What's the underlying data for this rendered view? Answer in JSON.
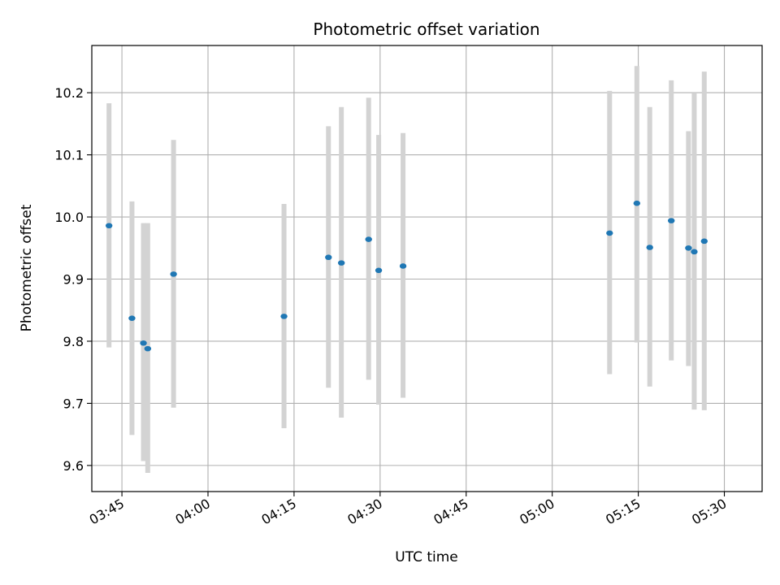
{
  "chart_data": {
    "type": "scatter",
    "title": "Photometric offset variation",
    "xlabel": "UTC time",
    "ylabel": "Photometric offset",
    "grid": true,
    "x_ticks": [
      {
        "t": "03:45",
        "label": "03:45"
      },
      {
        "t": "04:00",
        "label": "04:00"
      },
      {
        "t": "04:15",
        "label": "04:15"
      },
      {
        "t": "04:30",
        "label": "04:30"
      },
      {
        "t": "04:45",
        "label": "04:45"
      },
      {
        "t": "05:00",
        "label": "05:00"
      },
      {
        "t": "05:15",
        "label": "05:15"
      },
      {
        "t": "05:30",
        "label": "05:30"
      }
    ],
    "xlim": [
      "03:39:45",
      "05:36:35"
    ],
    "y_ticks": [
      9.6,
      9.7,
      9.8,
      9.9,
      10.0,
      10.1,
      10.2
    ],
    "ylim": [
      9.558,
      10.276
    ],
    "colors": {
      "point": "#1f77b4",
      "errorbar": "#d3d3d3",
      "grid": "#b0b0b0"
    },
    "points": [
      {
        "x": "03:42:45",
        "y": 9.986,
        "lo": 9.79,
        "hi": 10.183
      },
      {
        "x": "03:46:45",
        "y": 9.837,
        "lo": 9.649,
        "hi": 10.025
      },
      {
        "x": "03:48:45",
        "y": 9.797,
        "lo": 9.607,
        "hi": 9.99
      },
      {
        "x": "03:49:30",
        "y": 9.788,
        "lo": 9.588,
        "hi": 9.99
      },
      {
        "x": "03:54:00",
        "y": 9.908,
        "lo": 9.693,
        "hi": 10.124
      },
      {
        "x": "04:13:15",
        "y": 9.84,
        "lo": 9.66,
        "hi": 10.021
      },
      {
        "x": "04:21:00",
        "y": 9.935,
        "lo": 9.725,
        "hi": 10.146
      },
      {
        "x": "04:23:15",
        "y": 9.926,
        "lo": 9.677,
        "hi": 10.177
      },
      {
        "x": "04:28:00",
        "y": 9.964,
        "lo": 9.738,
        "hi": 10.192
      },
      {
        "x": "04:29:45",
        "y": 9.914,
        "lo": 9.698,
        "hi": 10.132
      },
      {
        "x": "04:34:00",
        "y": 9.921,
        "lo": 9.709,
        "hi": 10.135
      },
      {
        "x": "05:10:00",
        "y": 9.974,
        "lo": 9.747,
        "hi": 10.203
      },
      {
        "x": "05:14:45",
        "y": 10.022,
        "lo": 9.798,
        "hi": 10.243
      },
      {
        "x": "05:17:00",
        "y": 9.951,
        "lo": 9.727,
        "hi": 10.177
      },
      {
        "x": "05:20:45",
        "y": 9.994,
        "lo": 9.769,
        "hi": 10.22
      },
      {
        "x": "05:23:45",
        "y": 9.95,
        "lo": 9.76,
        "hi": 10.138
      },
      {
        "x": "05:24:45",
        "y": 9.944,
        "lo": 9.69,
        "hi": 10.2
      },
      {
        "x": "05:26:30",
        "y": 9.961,
        "lo": 9.689,
        "hi": 10.234
      }
    ]
  }
}
